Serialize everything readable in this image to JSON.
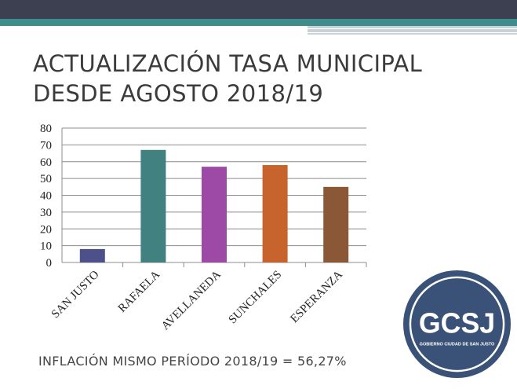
{
  "slide": {
    "title_line1": "ACTUALIZACIÓN TASA MUNICIPAL",
    "title_line2": "DESDE AGOSTO 2018/19",
    "footer": "INFLACIÓN MISMO PERÍODO 2018/19 = 56,27%"
  },
  "logo": {
    "initials": "GCSJ",
    "caption": "GOBIERNO CIUDAD DE SAN JUSTO",
    "color": "#3b5278"
  },
  "chart_data": {
    "type": "bar",
    "categories": [
      "SAN JUSTO",
      "RAFAELA",
      "AVELLANEDA",
      "SUNCHALES",
      "ESPERANZA"
    ],
    "values": [
      8,
      67,
      57,
      58,
      45
    ],
    "colors": [
      "#4e5189",
      "#418180",
      "#9c4aa6",
      "#c7642e",
      "#8a5836"
    ],
    "ylim": [
      0,
      80
    ],
    "yticks": [
      0,
      10,
      20,
      30,
      40,
      50,
      60,
      70,
      80
    ],
    "grid": true,
    "legend": "none",
    "title": "",
    "xlabel": "",
    "ylabel": ""
  }
}
